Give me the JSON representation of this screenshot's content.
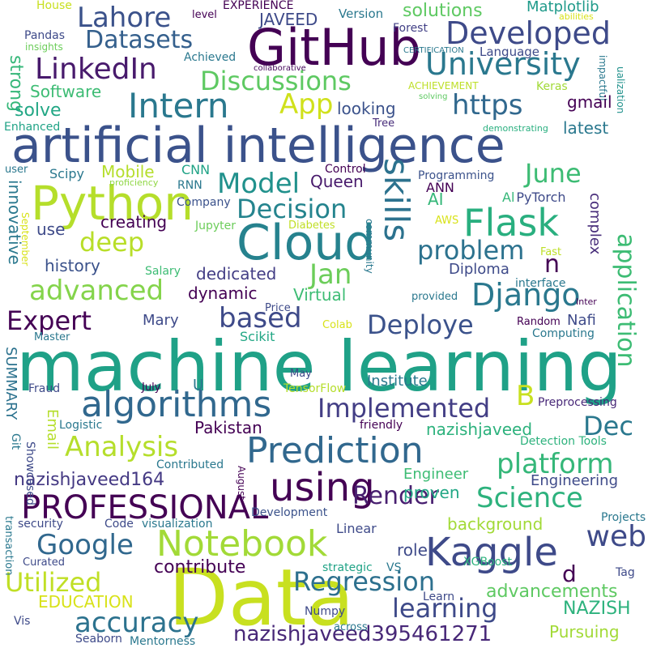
{
  "words": [
    {
      "text": "machine learning",
      "color": "#1fa187"
    },
    {
      "text": "artificial intelligence",
      "color": "#3b528b"
    },
    {
      "text": "Data",
      "color": "#c8e020"
    },
    {
      "text": "GitHub",
      "color": "#440154"
    },
    {
      "text": "Cloud",
      "color": "#26828e"
    },
    {
      "text": "Python",
      "color": "#b5de2b"
    },
    {
      "text": "Prediction",
      "color": "#31688e"
    },
    {
      "text": "Notebook",
      "color": "#a2da37"
    },
    {
      "text": "Kaggle",
      "color": "#3e4a89"
    },
    {
      "text": "algorithms",
      "color": "#31688e"
    },
    {
      "text": "PROFESSIONAL",
      "color": "#440154"
    },
    {
      "text": "using",
      "color": "#440154"
    },
    {
      "text": "Intern",
      "color": "#2a788e"
    },
    {
      "text": "Flask",
      "color": "#29af7f"
    },
    {
      "text": "Lahore",
      "color": "#3b528b"
    },
    {
      "text": "Developed",
      "color": "#3e4a89"
    },
    {
      "text": "University",
      "color": "#2a788e"
    },
    {
      "text": "LinkedIn",
      "color": "#481a6c"
    },
    {
      "text": "Datasets",
      "color": "#35608d"
    },
    {
      "text": "Discussions",
      "color": "#5ec962"
    },
    {
      "text": "App",
      "color": "#d0e11c"
    },
    {
      "text": "skills",
      "color": "#2c728e"
    },
    {
      "text": "Django",
      "color": "#2a788e"
    },
    {
      "text": "Model",
      "color": "#21918c"
    },
    {
      "text": "Decision",
      "color": "#25848e"
    },
    {
      "text": "deep",
      "color": "#b8de29"
    },
    {
      "text": "advanced",
      "color": "#84d44b"
    },
    {
      "text": "Expert",
      "color": "#440154"
    },
    {
      "text": "based",
      "color": "#3e4a89"
    },
    {
      "text": "Deploye",
      "color": "#3b528b"
    },
    {
      "text": "Science",
      "color": "#2db27d"
    },
    {
      "text": "platform",
      "color": "#35b779"
    },
    {
      "text": "Regression",
      "color": "#2d708e"
    },
    {
      "text": "learning",
      "color": "#3e4a89"
    },
    {
      "text": "accuracy",
      "color": "#2c728e"
    },
    {
      "text": "Google",
      "color": "#31688e"
    },
    {
      "text": "Utilized",
      "color": "#c0df25"
    },
    {
      "text": "Analysis",
      "color": "#b5de2b"
    },
    {
      "text": "Implemented",
      "color": "#433e85"
    },
    {
      "text": "web",
      "color": "#3e4a89"
    },
    {
      "text": "Render",
      "color": "#481f70"
    },
    {
      "text": "application",
      "color": "#3dbc74"
    },
    {
      "text": "problem",
      "color": "#2c728e"
    },
    {
      "text": "Jan",
      "color": "#6ccd5a"
    },
    {
      "text": "June",
      "color": "#3dbc74"
    },
    {
      "text": "https",
      "color": "#31688e"
    },
    {
      "text": "nazishjaveed395461271",
      "color": "#482878"
    },
    {
      "text": "nazishjaveed164",
      "color": "#443983"
    },
    {
      "text": "solutions",
      "color": "#5ec962"
    },
    {
      "text": "Matplotlib",
      "color": "#1f9a8a"
    },
    {
      "text": "JAVEED",
      "color": "#3e4a89"
    },
    {
      "text": "EXPERIENCE",
      "color": "#440154"
    },
    {
      "text": "House",
      "color": "#c8e020"
    },
    {
      "text": "level",
      "color": "#440154"
    },
    {
      "text": "Version",
      "color": "#2a788e"
    },
    {
      "text": "Forest",
      "color": "#424086"
    },
    {
      "text": "abilities",
      "color": "#d8e219"
    },
    {
      "text": "Pandas",
      "color": "#3e4a89"
    },
    {
      "text": "insights",
      "color": "#6ccd5a"
    },
    {
      "text": "Achieved",
      "color": "#2a788e"
    },
    {
      "text": "collaborative",
      "color": "#46085c"
    },
    {
      "text": "CERTIFICATION",
      "color": "#2a788e"
    },
    {
      "text": "Language",
      "color": "#3e4a89"
    },
    {
      "text": "impactful",
      "color": "#2a788e"
    },
    {
      "text": "ualization",
      "color": "#21918c"
    },
    {
      "text": "strong",
      "color": "#35b779"
    },
    {
      "text": "Software",
      "color": "#3dbc74"
    },
    {
      "text": "solve",
      "color": "#22a785"
    },
    {
      "text": "looking",
      "color": "#3b528b"
    },
    {
      "text": "ACHIEVEMENT",
      "color": "#bddf26"
    },
    {
      "text": "Keras",
      "color": "#a2da37"
    },
    {
      "text": "solving",
      "color": "#5ec962"
    },
    {
      "text": "gmail",
      "color": "#440154"
    },
    {
      "text": "Enhanced",
      "color": "#20a386"
    },
    {
      "text": "Tree",
      "color": "#472c7a"
    },
    {
      "text": "demonstrating",
      "color": "#29af7f"
    },
    {
      "text": "latest",
      "color": "#2a788e"
    },
    {
      "text": "n",
      "color": "#440154"
    },
    {
      "text": "user",
      "color": "#2a788e"
    },
    {
      "text": "Scipy",
      "color": "#2a788e"
    },
    {
      "text": "Mobile",
      "color": "#b5de2b"
    },
    {
      "text": "CNN",
      "color": "#20a386"
    },
    {
      "text": "Control",
      "color": "#440154"
    },
    {
      "text": "ANN",
      "color": "#440154"
    },
    {
      "text": "Programming",
      "color": "#3b528b"
    },
    {
      "text": "proficiency",
      "color": "#8fd744"
    },
    {
      "text": "RNN",
      "color": "#2a788e"
    },
    {
      "text": "Queen",
      "color": "#481a6c"
    },
    {
      "text": "AI",
      "color": "#35b779"
    },
    {
      "text": "Al",
      "color": "#35b779"
    },
    {
      "text": "PyTorch",
      "color": "#3e4a89"
    },
    {
      "text": "innovative",
      "color": "#2a788e"
    },
    {
      "text": "Company",
      "color": "#3b528b"
    },
    {
      "text": "creating",
      "color": "#440154"
    },
    {
      "text": "Diabetes",
      "color": "#c0df25"
    },
    {
      "text": "complex",
      "color": "#472c7a"
    },
    {
      "text": "AWS",
      "color": "#d8e219"
    },
    {
      "text": "use",
      "color": "#3e4a89"
    },
    {
      "text": "September",
      "color": "#d8e219"
    },
    {
      "text": "community",
      "color": "#2a788e"
    },
    {
      "text": "Jupyter",
      "color": "#6ccd5a"
    },
    {
      "text": "Fast",
      "color": "#bddf26"
    },
    {
      "text": "history",
      "color": "#3b528b"
    },
    {
      "text": "Salary",
      "color": "#3dbc74"
    },
    {
      "text": "Diploma",
      "color": "#3e4a89"
    },
    {
      "text": "dedicated",
      "color": "#433e85"
    },
    {
      "text": "interface",
      "color": "#2a788e"
    },
    {
      "text": "dynamic",
      "color": "#440154"
    },
    {
      "text": "provided",
      "color": "#2a788e"
    },
    {
      "text": "Virtual",
      "color": "#3dbc74"
    },
    {
      "text": "Inter",
      "color": "#440154"
    },
    {
      "text": "Price",
      "color": "#3e4a89"
    },
    {
      "text": "Mary",
      "color": "#3e4a89"
    },
    {
      "text": "Nafi",
      "color": "#3e4a89"
    },
    {
      "text": "Random",
      "color": "#440154"
    },
    {
      "text": "Master",
      "color": "#2a788e"
    },
    {
      "text": "Scikit",
      "color": "#22a785"
    },
    {
      "text": "Colab",
      "color": "#d8e219"
    },
    {
      "text": "Computing",
      "color": "#2a788e"
    },
    {
      "text": "SUMMARY",
      "color": "#2c728e"
    },
    {
      "text": "May",
      "color": "#3e4a89"
    },
    {
      "text": "U",
      "color": "#2a788e"
    },
    {
      "text": "Institute",
      "color": "#2a788e"
    },
    {
      "text": "B",
      "color": "#c8e020"
    },
    {
      "text": "Dec",
      "color": "#2a788e"
    },
    {
      "text": "Fraud",
      "color": "#3e4a89"
    },
    {
      "text": "July",
      "color": "#440154"
    },
    {
      "text": "TensorFlow",
      "color": "#b5de2b"
    },
    {
      "text": "Preprocessing",
      "color": "#482878"
    },
    {
      "text": "Email",
      "color": "#b5de2b"
    },
    {
      "text": "Logistic",
      "color": "#2a788e"
    },
    {
      "text": "Pakistan",
      "color": "#440154"
    },
    {
      "text": "friendly",
      "color": "#440154"
    },
    {
      "text": "nazishjaveed",
      "color": "#2db27d"
    },
    {
      "text": "Git",
      "color": "#2a788e"
    },
    {
      "text": "Showcased",
      "color": "#3e4a89"
    },
    {
      "text": "Contributed",
      "color": "#2a788e"
    },
    {
      "text": "Detection Tools",
      "color": "#2db27d"
    },
    {
      "text": "Engineer",
      "color": "#3dbc74"
    },
    {
      "text": "proven",
      "color": "#22a785"
    },
    {
      "text": "Engineering",
      "color": "#3e4a89"
    },
    {
      "text": "August",
      "color": "#440154"
    },
    {
      "text": "Development",
      "color": "#3b528b"
    },
    {
      "text": "security",
      "color": "#3e4a89"
    },
    {
      "text": "Code",
      "color": "#3e4a89"
    },
    {
      "text": "visualization",
      "color": "#2a788e"
    },
    {
      "text": "Linear",
      "color": "#3e4a89"
    },
    {
      "text": "background",
      "color": "#a2da37"
    },
    {
      "text": "Projects",
      "color": "#2a788e"
    },
    {
      "text": "transaction",
      "color": "#2a788e"
    },
    {
      "text": "contribute",
      "color": "#440154"
    },
    {
      "text": "Curated",
      "color": "#3e4a89"
    },
    {
      "text": "role",
      "color": "#3e4a89"
    },
    {
      "text": "strategic",
      "color": "#20a386"
    },
    {
      "text": "VS",
      "color": "#2a788e"
    },
    {
      "text": "XGBoost",
      "color": "#2db27d"
    },
    {
      "text": "d",
      "color": "#440154"
    },
    {
      "text": "Tag",
      "color": "#3e4a89"
    },
    {
      "text": "EDUCATION",
      "color": "#d8e219"
    },
    {
      "text": "Learn",
      "color": "#3e4a89"
    },
    {
      "text": "advancements",
      "color": "#5ec962"
    },
    {
      "text": "NAZISH",
      "color": "#2db27d"
    },
    {
      "text": "Numpy",
      "color": "#3e4a89"
    },
    {
      "text": "Pursuing",
      "color": "#a2da37"
    },
    {
      "text": "Vis",
      "color": "#3e4a89"
    },
    {
      "text": "Seaborn",
      "color": "#3e4a89"
    },
    {
      "text": "Mentorness",
      "color": "#2a788e"
    },
    {
      "text": "across",
      "color": "#2a788e"
    }
  ]
}
